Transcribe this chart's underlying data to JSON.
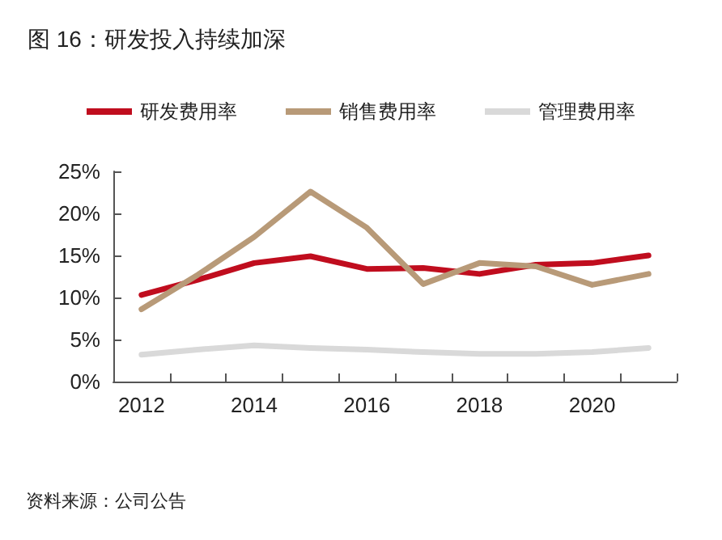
{
  "chart_data": {
    "type": "line",
    "title": "图 16：研发投入持续加深",
    "categories": [
      "2012",
      null,
      "2014",
      null,
      "2016",
      null,
      "2018",
      null,
      "2020",
      null
    ],
    "series": [
      {
        "name": "研发费用率",
        "color": "#c00d1e",
        "values": [
          10.3,
          12.1,
          14.1,
          14.9,
          13.4,
          13.5,
          12.8,
          13.9,
          14.1,
          15.0
        ]
      },
      {
        "name": "销售费用率",
        "color": "#b89a78",
        "values": [
          8.6,
          12.7,
          17.2,
          22.6,
          18.3,
          11.6,
          14.1,
          13.7,
          11.5,
          12.8
        ]
      },
      {
        "name": "管理费用率",
        "color": "#d9d9d9",
        "values": [
          3.2,
          3.8,
          4.3,
          4.0,
          3.8,
          3.5,
          3.3,
          3.3,
          3.5,
          4.0
        ]
      }
    ],
    "ylim": [
      0,
      25
    ],
    "yticks": [
      {
        "value": 0,
        "label": "0%"
      },
      {
        "value": 5,
        "label": "5%"
      },
      {
        "value": 10,
        "label": "10%"
      },
      {
        "value": 15,
        "label": "15%"
      },
      {
        "value": 20,
        "label": "20%"
      },
      {
        "value": 25,
        "label": "25%"
      }
    ],
    "grid": false,
    "legend": "top",
    "marker": "none",
    "line_style": "solid",
    "annotations": [
      "资料来源：公司公告"
    ]
  }
}
